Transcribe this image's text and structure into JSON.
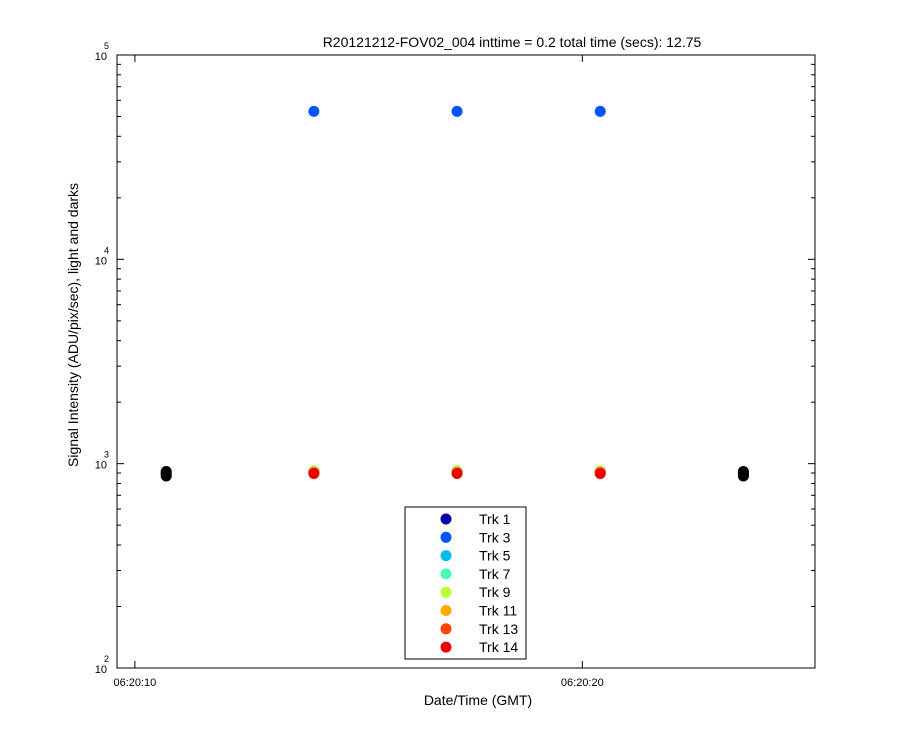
{
  "chart_data": {
    "type": "scatter",
    "title": "R20121212-FOV02_004 inttime = 0.2 total time (secs): 12.75",
    "xlabel": "Date/Time (GMT)",
    "ylabel": "Signal Intensity (ADU/pix/sec), light and darks",
    "yscale": "log",
    "ylim": [
      100,
      100000
    ],
    "xlim": [
      "06:20:09.6",
      "06:20:25.2"
    ],
    "x_ticks": [
      {
        "label": "06:20:10",
        "value": "06:20:10"
      },
      {
        "label": "06:20:20",
        "value": "06:20:20"
      }
    ],
    "y_ticks": [
      {
        "base": "10",
        "exp": "2",
        "value": 100
      },
      {
        "base": "10",
        "exp": "3",
        "value": 1000
      },
      {
        "base": "10",
        "exp": "4",
        "value": 10000
      },
      {
        "base": "10",
        "exp": "5",
        "value": 100000
      }
    ],
    "grid": false,
    "legend_position": "bottom-center",
    "series": [
      {
        "name": "Trk 1",
        "color": "#0000aa",
        "x": [
          "06:20:14",
          "06:20:17.2",
          "06:20:20.4"
        ],
        "values": [
          920,
          920,
          920
        ]
      },
      {
        "name": "Trk 3",
        "color": "#0055ff",
        "x": [
          "06:20:14",
          "06:20:17.2",
          "06:20:20.4"
        ],
        "values": [
          53000,
          53000,
          53000
        ]
      },
      {
        "name": "Trk 5",
        "color": "#00bbee",
        "x": [
          "06:20:14",
          "06:20:17.2",
          "06:20:20.4"
        ],
        "values": [
          920,
          920,
          920
        ]
      },
      {
        "name": "Trk 7",
        "color": "#44ffbb",
        "x": [
          "06:20:14",
          "06:20:17.2",
          "06:20:20.4"
        ],
        "values": [
          920,
          920,
          920
        ]
      },
      {
        "name": "Trk 9",
        "color": "#bbff33",
        "x": [
          "06:20:14",
          "06:20:17.2",
          "06:20:20.4"
        ],
        "values": [
          920,
          920,
          920
        ]
      },
      {
        "name": "Trk 11",
        "color": "#ffaa00",
        "x": [
          "06:20:14",
          "06:20:17.2",
          "06:20:20.4"
        ],
        "values": [
          910,
          910,
          910
        ]
      },
      {
        "name": "Trk 13",
        "color": "#ff4400",
        "x": [
          "06:20:14",
          "06:20:17.2",
          "06:20:20.4"
        ],
        "values": [
          900,
          900,
          900
        ]
      },
      {
        "name": "Trk 14",
        "color": "#ee0000",
        "x": [
          "06:20:14",
          "06:20:17.2",
          "06:20:20.4"
        ],
        "values": [
          895,
          895,
          895
        ]
      }
    ],
    "darks": {
      "color": "#000000",
      "x": [
        "06:20:10.7",
        "06:20:10.7",
        "06:20:10.7",
        "06:20:10.7",
        "06:20:23.6",
        "06:20:23.6",
        "06:20:23.6",
        "06:20:23.6"
      ],
      "values": [
        870,
        885,
        900,
        915,
        870,
        885,
        900,
        915
      ]
    }
  }
}
